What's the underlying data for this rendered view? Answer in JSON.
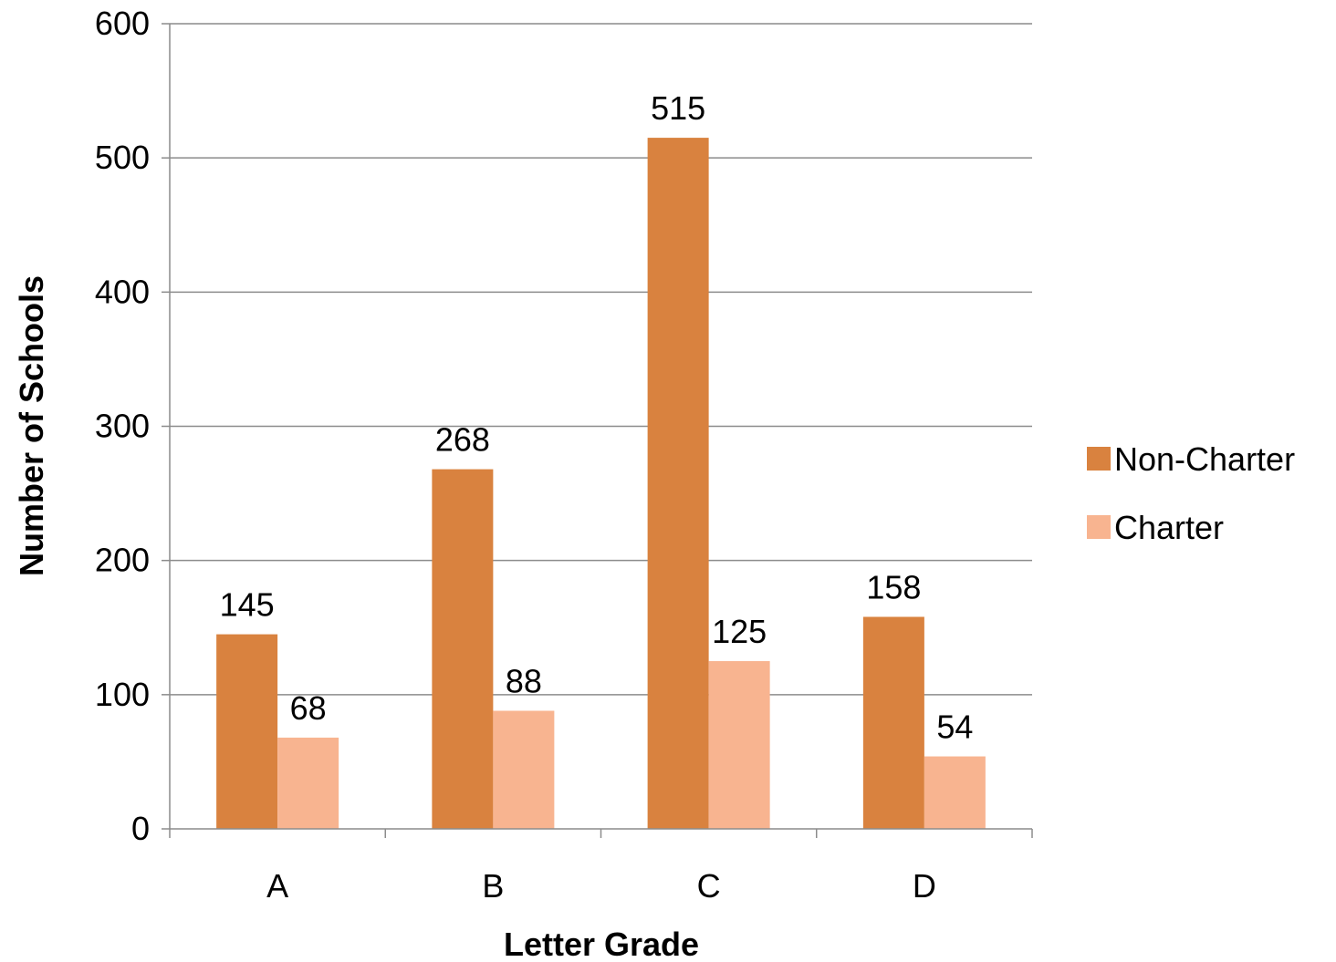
{
  "chart_data": {
    "type": "bar",
    "title": "",
    "xlabel": "Letter Grade",
    "ylabel": "Number of Schools",
    "categories": [
      "A",
      "B",
      "C",
      "D"
    ],
    "series": [
      {
        "name": "Non-Charter",
        "color": "#D9823F",
        "values": [
          145,
          268,
          515,
          158
        ]
      },
      {
        "name": "Charter",
        "color": "#F8B490",
        "values": [
          68,
          88,
          125,
          54
        ]
      }
    ],
    "ylim": [
      0,
      600
    ],
    "yticks": [
      0,
      100,
      200,
      300,
      400,
      500,
      600
    ],
    "grid": true,
    "legend_position": "right",
    "data_labels": true
  }
}
